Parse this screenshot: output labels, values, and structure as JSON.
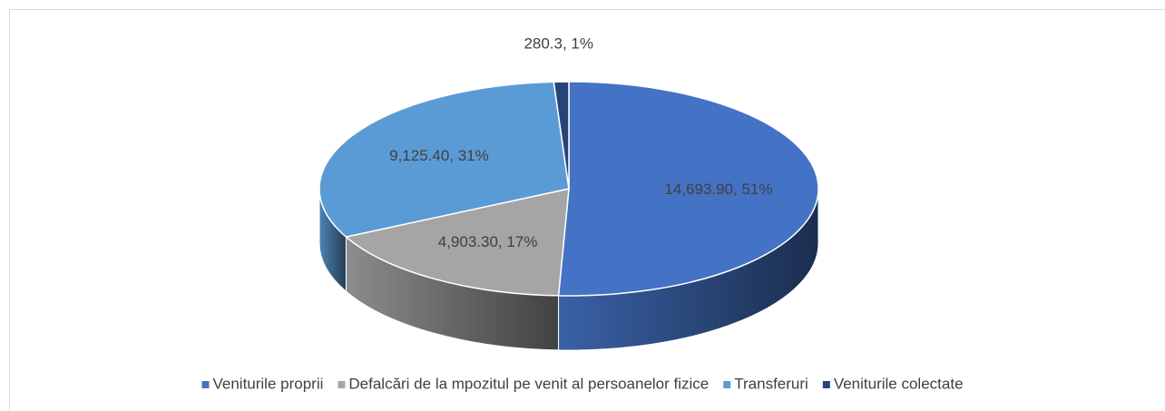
{
  "chart_data": {
    "type": "pie3d",
    "categories": [
      "Veniturile proprii",
      "Defalcări de la mpozitul pe venit al persoanelor fizice",
      "Transferuri",
      "Veniturile colectate"
    ],
    "values": [
      14693.9,
      4903.3,
      9125.4,
      280.3
    ],
    "value_labels": [
      "14,693.90, 51%",
      "4,903.30, 17%",
      "9,125.40, 31%",
      "280.3, 1%"
    ],
    "colors": [
      "#4472c4",
      "#a5a5a5",
      "#5b9bd5",
      "#264478"
    ],
    "legend": "bottom"
  }
}
